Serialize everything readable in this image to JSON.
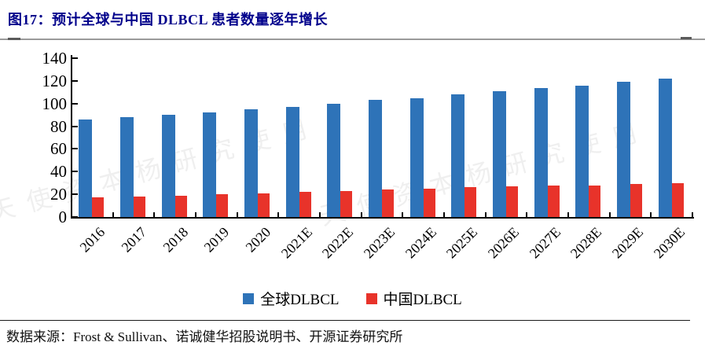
{
  "page": {
    "title": "图17：预计全球与中国 DLBCL 患者数量逐年增长",
    "source": "数据来源：Frost & Sullivan、诺诚健华招股说明书、开源证券研究所",
    "watermark": "天使资本杨研究使用"
  },
  "colors": {
    "title_navy": "#00008B",
    "global_blue": "#2E73B8",
    "china_red": "#E8332A",
    "axis_black": "#000000",
    "rule_gray": "#9a9a9a"
  },
  "chart_data": {
    "type": "bar",
    "title": "预计全球与中国DLBCL患者数量逐年增长",
    "categories": [
      "2016",
      "2017",
      "2018",
      "2019",
      "2020",
      "2021E",
      "2022E",
      "2023E",
      "2024E",
      "2025E",
      "2026E",
      "2027E",
      "2028E",
      "2029E",
      "2030E"
    ],
    "series": [
      {
        "name": "全球DLBCL",
        "color_key": "global_blue",
        "values": [
          86,
          88,
          90,
          92,
          95,
          97,
          100,
          103,
          105,
          108,
          111,
          114,
          116,
          119,
          122
        ]
      },
      {
        "name": "中国DLBCL",
        "color_key": "china_red",
        "values": [
          17,
          18,
          19,
          20,
          21,
          22,
          23,
          24,
          25,
          26,
          27,
          28,
          28,
          29,
          30
        ]
      }
    ],
    "xlabel": "",
    "ylabel": "",
    "ylim": [
      0,
      140
    ],
    "yticks": [
      0,
      20,
      40,
      60,
      80,
      100,
      120,
      140
    ],
    "grid": false,
    "legend_position": "bottom"
  }
}
